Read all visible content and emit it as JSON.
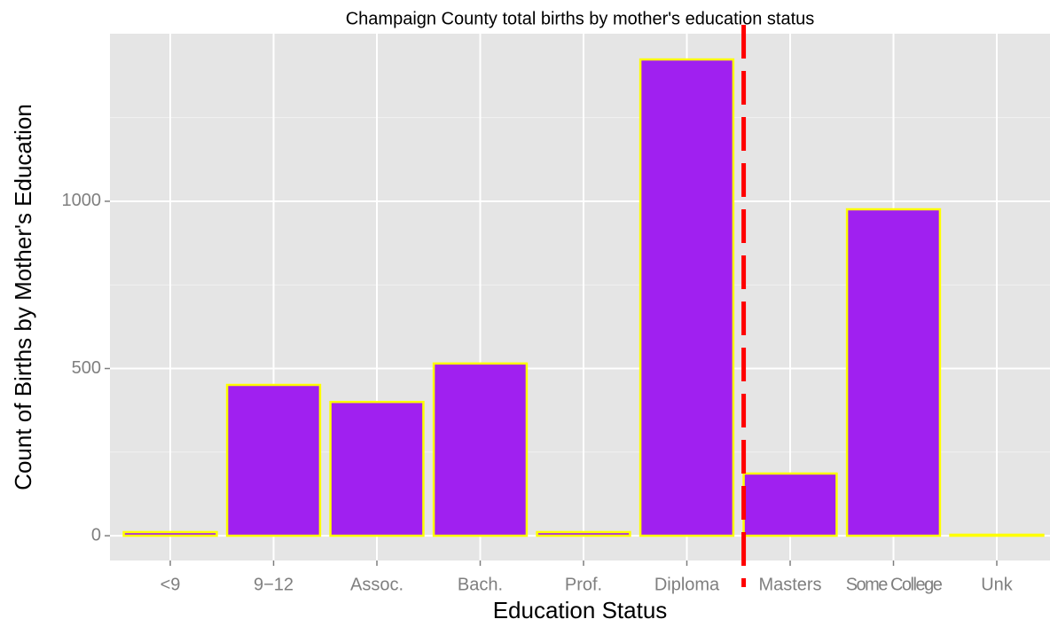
{
  "chart_data": {
    "type": "bar",
    "title": "Champaign County total births by mother's education status",
    "x_label": "Education Status",
    "y_label": "Count of Births by Mother's Education",
    "categories": [
      "<9",
      "9−12",
      "Assoc.",
      "Bach.",
      "Prof.",
      "Diploma",
      "Masters",
      "Some College",
      "Unk"
    ],
    "values": [
      11,
      451,
      400,
      515,
      11,
      1424,
      186,
      976,
      3
    ],
    "color": "#a020f0",
    "edge_color": "#ffff00",
    "ylim": [
      -74,
      1501
    ],
    "yticks": [
      0,
      500,
      1000
    ],
    "minor_yticks": [
      250,
      750,
      1250
    ],
    "grid": true,
    "vline": {
      "x": 6.55,
      "color": "#ff0000",
      "style": "dashed"
    }
  }
}
